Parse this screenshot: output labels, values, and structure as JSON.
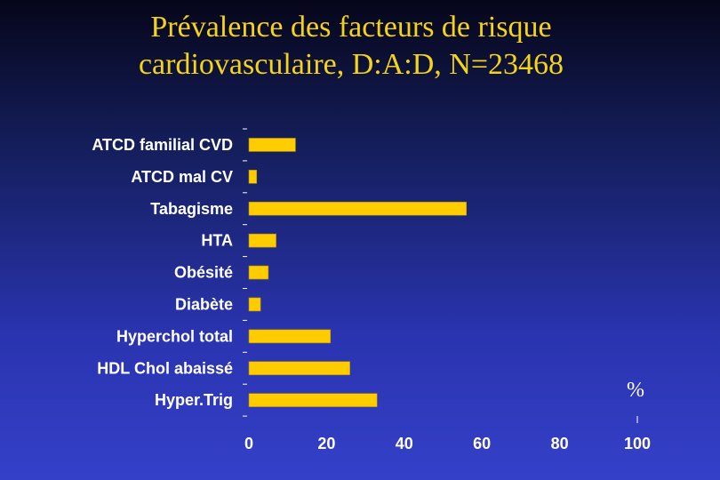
{
  "title_line1": "Prévalence des facteurs de risque",
  "title_line2": "cardiovasculaire, D:A:D, N=23468",
  "chart_data": {
    "type": "bar",
    "orientation": "horizontal",
    "categories": [
      "ATCD familial CVD",
      "ATCD mal CV",
      "Tabagisme",
      "HTA",
      "Obésité",
      "Diabète",
      "Hyperchol total",
      "HDL Chol abaissé",
      "Hyper.Trig"
    ],
    "values": [
      12,
      2,
      56,
      7,
      5,
      3,
      21,
      26,
      33
    ],
    "xlim": [
      0,
      100
    ],
    "xticks": [
      "0",
      "20",
      "40",
      "60",
      "80",
      "100"
    ],
    "unit_label": "%",
    "bar_color": "#ffcc00",
    "grid": false
  }
}
